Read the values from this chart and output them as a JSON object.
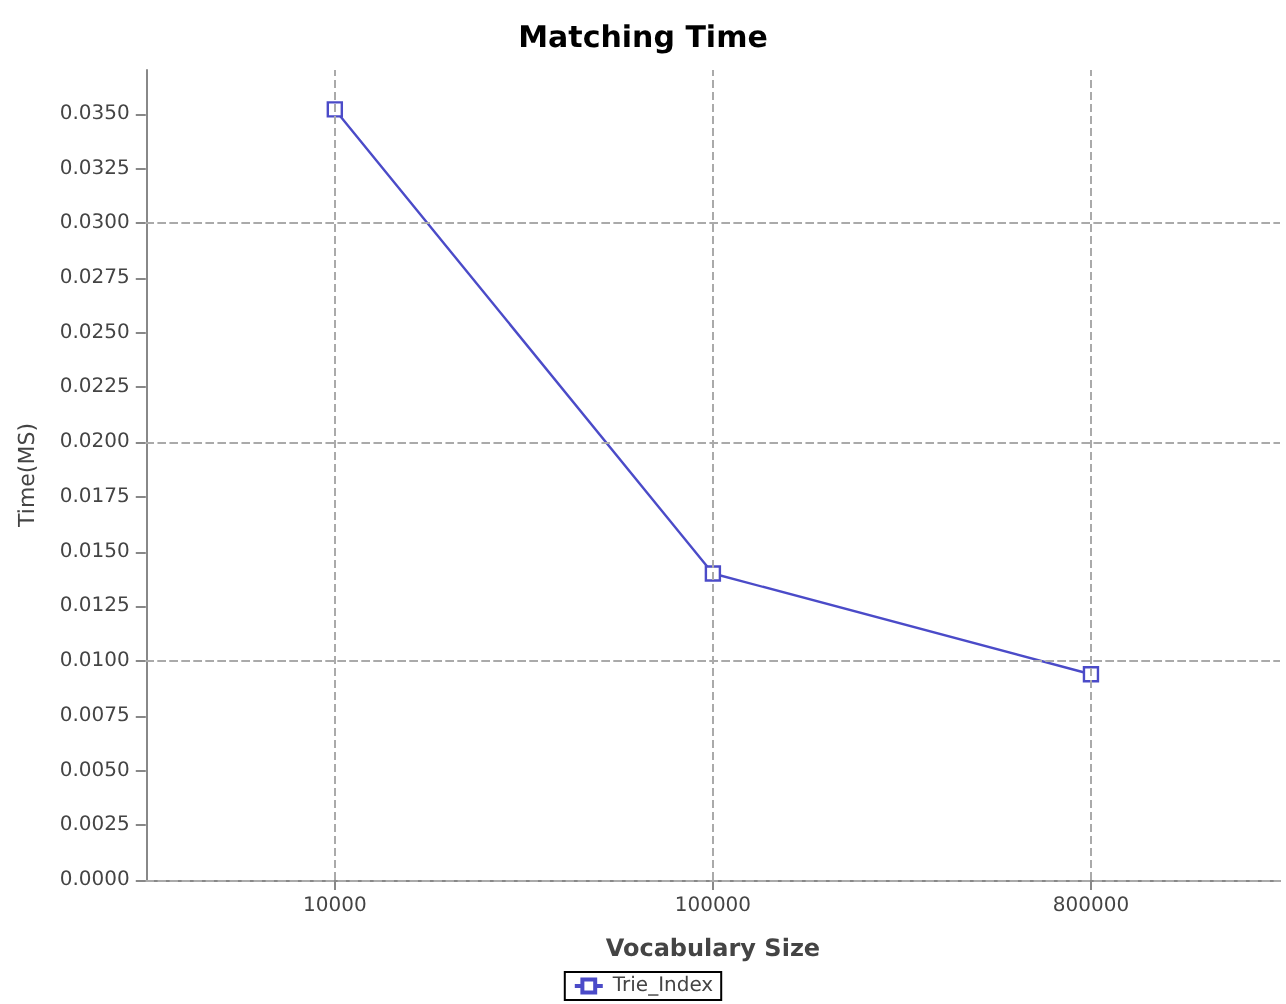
{
  "chart_data": {
    "type": "line",
    "title": "Matching Time",
    "xlabel": "Vocabulary Size",
    "ylabel": "Time(MS)",
    "categories": [
      "10000",
      "100000",
      "800000"
    ],
    "series": [
      {
        "name": "Trie_Index",
        "color": "#4b4bc8",
        "values": [
          0.0352,
          0.014,
          0.0094
        ]
      }
    ],
    "ylim": [
      0,
      0.037
    ],
    "yticks": [
      {
        "value": 0,
        "label": "0.0000"
      },
      {
        "value": 0.0025,
        "label": "0.0025"
      },
      {
        "value": 0.005,
        "label": "0.0050"
      },
      {
        "value": 0.0075,
        "label": "0.0075"
      },
      {
        "value": 0.01,
        "label": "0.0100"
      },
      {
        "value": 0.0125,
        "label": "0.0125"
      },
      {
        "value": 0.015,
        "label": "0.0150"
      },
      {
        "value": 0.0175,
        "label": "0.0175"
      },
      {
        "value": 0.02,
        "label": "0.0200"
      },
      {
        "value": 0.0225,
        "label": "0.0225"
      },
      {
        "value": 0.025,
        "label": "0.0250"
      },
      {
        "value": 0.0275,
        "label": "0.0275"
      },
      {
        "value": 0.03,
        "label": "0.0300"
      },
      {
        "value": 0.0325,
        "label": "0.0325"
      },
      {
        "value": 0.035,
        "label": "0.0350"
      }
    ],
    "grid": true,
    "legend": "bottom",
    "marker": "square",
    "line_style": "solid"
  }
}
